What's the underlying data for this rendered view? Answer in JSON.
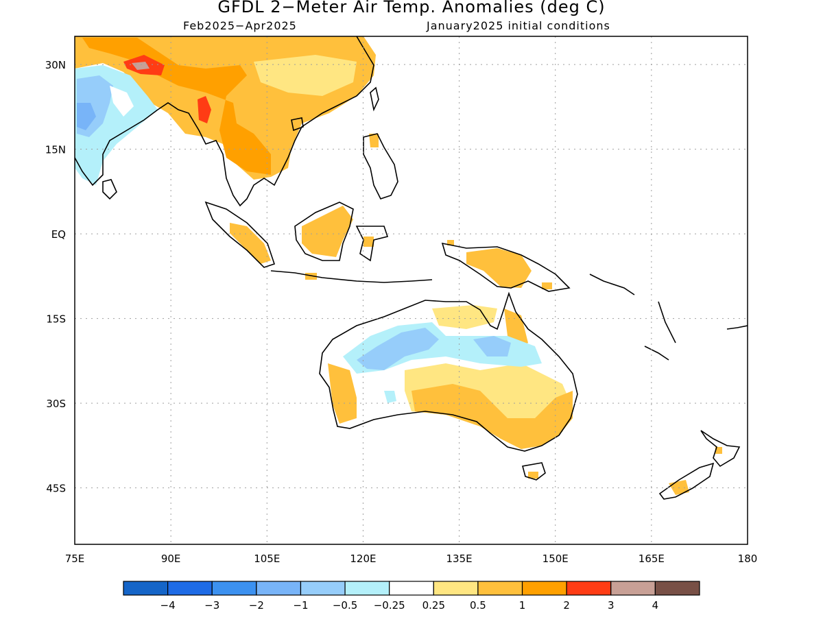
{
  "title": "GFDL 2−Meter Air Temp. Anomalies (deg C)",
  "period": "Feb2025−Apr2025",
  "init": "January2025 initial conditions",
  "axes": {
    "lon_labels": [
      "75E",
      "90E",
      "105E",
      "120E",
      "135E",
      "150E",
      "165E",
      "180"
    ],
    "lat_labels": [
      "30N",
      "15N",
      "EQ",
      "15S",
      "30S",
      "45S"
    ]
  },
  "colorbar": {
    "colors": [
      "#1565c8",
      "#1e6be6",
      "#3c91f0",
      "#78b4f8",
      "#96cdfa",
      "#b4f0fa",
      "#ffffff",
      "#ffe682",
      "#ffc03c",
      "#ffa000",
      "#ff3c14",
      "#c8a096",
      "#785046"
    ],
    "labels": [
      "−4",
      "−3",
      "−2",
      "−1",
      "−0.5",
      "−0.25",
      "0.25",
      "0.5",
      "1",
      "2",
      "3",
      "4"
    ]
  },
  "map": {
    "extent": {
      "lon": [
        75,
        180
      ],
      "lat": [
        -55,
        35
      ]
    },
    "graticule_lons": [
      90,
      105,
      120,
      135,
      150,
      165
    ],
    "graticule_lats": [
      30,
      15,
      0,
      -15,
      -30,
      -45
    ]
  }
}
